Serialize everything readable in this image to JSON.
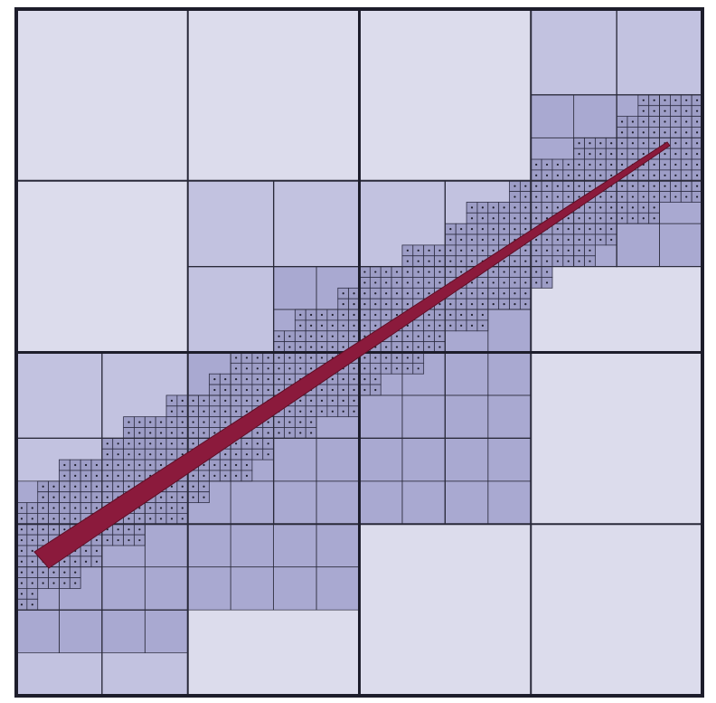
{
  "figure": {
    "kind": "adaptive quadtree refinement along a tapered line",
    "colors": {
      "level1_fill": "#dcdcec",
      "level2_fill": "#c2c2e0",
      "level3_fill": "#a9a9d1",
      "fine_grid_fill": "#9d9dc6",
      "fine_grid_line": "#2f2f45",
      "grid_dot": "#1e1e2c",
      "line_stroke": "#2a2a3a",
      "heavy_line": "#1d1d2b",
      "wedge_fill": "#8b1a3c",
      "wedge_edge": "#5e0f26"
    }
  }
}
